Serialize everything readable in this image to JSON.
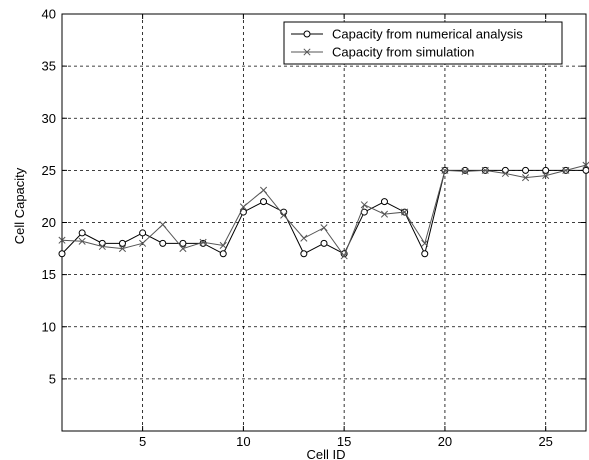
{
  "chart_data": {
    "type": "line",
    "title": "",
    "xlabel": "Cell ID",
    "ylabel": "Cell Capacity",
    "xlim": [
      1,
      27
    ],
    "ylim": [
      0,
      40
    ],
    "xticks": [
      5,
      10,
      15,
      20,
      25
    ],
    "yticks": [
      5,
      10,
      15,
      20,
      25,
      30,
      35,
      40
    ],
    "grid": true,
    "legend_position": "top-right",
    "x": [
      1,
      2,
      3,
      4,
      5,
      6,
      7,
      8,
      9,
      10,
      11,
      12,
      13,
      14,
      15,
      16,
      17,
      18,
      19,
      20,
      21,
      22,
      23,
      24,
      25,
      26,
      27
    ],
    "series": [
      {
        "name": "Capacity from numerical analysis",
        "marker": "circle",
        "color": "#000000",
        "values": [
          17,
          19,
          18,
          18,
          19,
          18,
          18,
          18,
          17,
          21,
          22,
          21,
          17,
          18,
          17,
          21,
          22,
          21,
          17,
          25,
          25,
          25,
          25,
          25,
          25,
          25,
          25
        ]
      },
      {
        "name": "Capacity from simulation",
        "marker": "x",
        "color": "#555555",
        "values": [
          18.3,
          18.2,
          17.7,
          17.5,
          18,
          19.8,
          17.5,
          18.1,
          17.8,
          21.5,
          23.1,
          20.7,
          18.5,
          19.5,
          16.8,
          21.7,
          20.8,
          21,
          18,
          25,
          24.9,
          25,
          24.7,
          24.3,
          24.5,
          25,
          25.5
        ]
      }
    ]
  }
}
